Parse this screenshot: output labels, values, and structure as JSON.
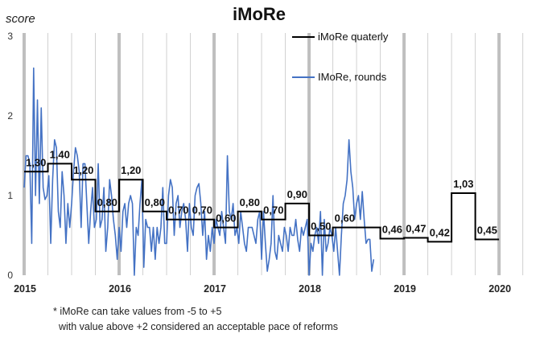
{
  "chart_data": {
    "type": "line",
    "title": "iMoRe",
    "ylabel": "score",
    "ylim": [
      0,
      3
    ],
    "y_ticks": [
      "0",
      "1",
      "2",
      "3"
    ],
    "x_range": [
      2015.0,
      2020.27
    ],
    "x_tick_labels": [
      "2015",
      "2016",
      "2017",
      "2018",
      "2019",
      "2020"
    ],
    "x_tick_values": [
      2015,
      2016,
      2017,
      2018,
      2019,
      2020
    ],
    "legend_position": "top-right",
    "series": [
      {
        "name": "iMoRe quaterly",
        "color": "#000000",
        "style": "step",
        "values": [
          1.3,
          1.4,
          1.2,
          0.8,
          1.2,
          0.8,
          0.7,
          0.7,
          0.6,
          0.8,
          0.7,
          0.9,
          0.5,
          0.6,
          0.6,
          0.46,
          0.47,
          0.42,
          1.03,
          0.45
        ],
        "data_labels": [
          "1,30",
          "1,40",
          "1,20",
          "0,80",
          "1,20",
          "0,80",
          "0,70",
          "0,70",
          "0,60",
          "0,80",
          "0,70",
          "0,90",
          "0,50",
          "0,60",
          "",
          "0,46",
          "0,47",
          "0,42",
          "1,03",
          "0,45"
        ]
      },
      {
        "name": "IMoRe, rounds",
        "color": "#4472C4",
        "style": "line",
        "x_start": 2015.0,
        "x_step": 0.02,
        "values": [
          1.1,
          1.5,
          1.5,
          1.4,
          0.4,
          2.6,
          1.0,
          2.2,
          0.9,
          2.1,
          1.1,
          0.95,
          1.0,
          1.25,
          0.4,
          1.2,
          1.7,
          1.6,
          0.8,
          0.6,
          1.3,
          1.0,
          0.4,
          0.9,
          0.6,
          0.9,
          1.3,
          1.6,
          1.5,
          1.3,
          0.6,
          1.4,
          1.4,
          0.9,
          0.4,
          0.8,
          1.1,
          0.6,
          0.7,
          1.4,
          0.6,
          0.7,
          1.1,
          0.3,
          0.6,
          1.2,
          1.0,
          0.7,
          0.5,
          0.2,
          0.6,
          0.3,
          0.8,
          0.9,
          0.6,
          0.9,
          1.0,
          0.9,
          0.0,
          0.6,
          0.5,
          0.9,
          1.2,
          0.1,
          0.7,
          0.6,
          0.6,
          0.3,
          0.6,
          0.2,
          0.6,
          0.4,
          0.6,
          1.1,
          0.4,
          0.4,
          1.0,
          1.2,
          1.1,
          0.5,
          0.9,
          1.0,
          0.6,
          0.8,
          0.9,
          0.7,
          0.3,
          0.9,
          0.6,
          0.5,
          1.0,
          1.1,
          1.15,
          0.9,
          0.5,
          0.8,
          0.2,
          0.5,
          0.3,
          0.6,
          0.4,
          0.7,
          0.6,
          0.5,
          0.8,
          0.6,
          0.4,
          1.5,
          0.8,
          0.7,
          0.9,
          0.5,
          0.6,
          0.4,
          0.8,
          0.6,
          0.4,
          0.3,
          0.6,
          0.6,
          0.6,
          0.5,
          0.4,
          0.7,
          0.8,
          0.2,
          0.8,
          0.4,
          0.05,
          0.2,
          0.4,
          1.0,
          0.3,
          0.2,
          0.5,
          0.4,
          0.3,
          0.6,
          0.5,
          0.3,
          0.6,
          0.5,
          0.5,
          0.7,
          0.45,
          0.3,
          0.6,
          0.5,
          0.6,
          0.7,
          0.0,
          0.4,
          0.3,
          0.5,
          0.6,
          0.4,
          0.8,
          0.0,
          0.7,
          0.3,
          0.4,
          0.6,
          0.5,
          0.3,
          0.6,
          0.3,
          0.0,
          0.5,
          0.9,
          1.0,
          1.2,
          1.7,
          1.3,
          1.1,
          0.7,
          0.9,
          1.0,
          0.7,
          1.05,
          0.7,
          0.4,
          0.45,
          0.45,
          0.05,
          0.2
        ]
      }
    ],
    "note": [
      "* iMoRe can take values from -5 to +5",
      "  with value above +2 considered an acceptable pace of reforms"
    ]
  }
}
